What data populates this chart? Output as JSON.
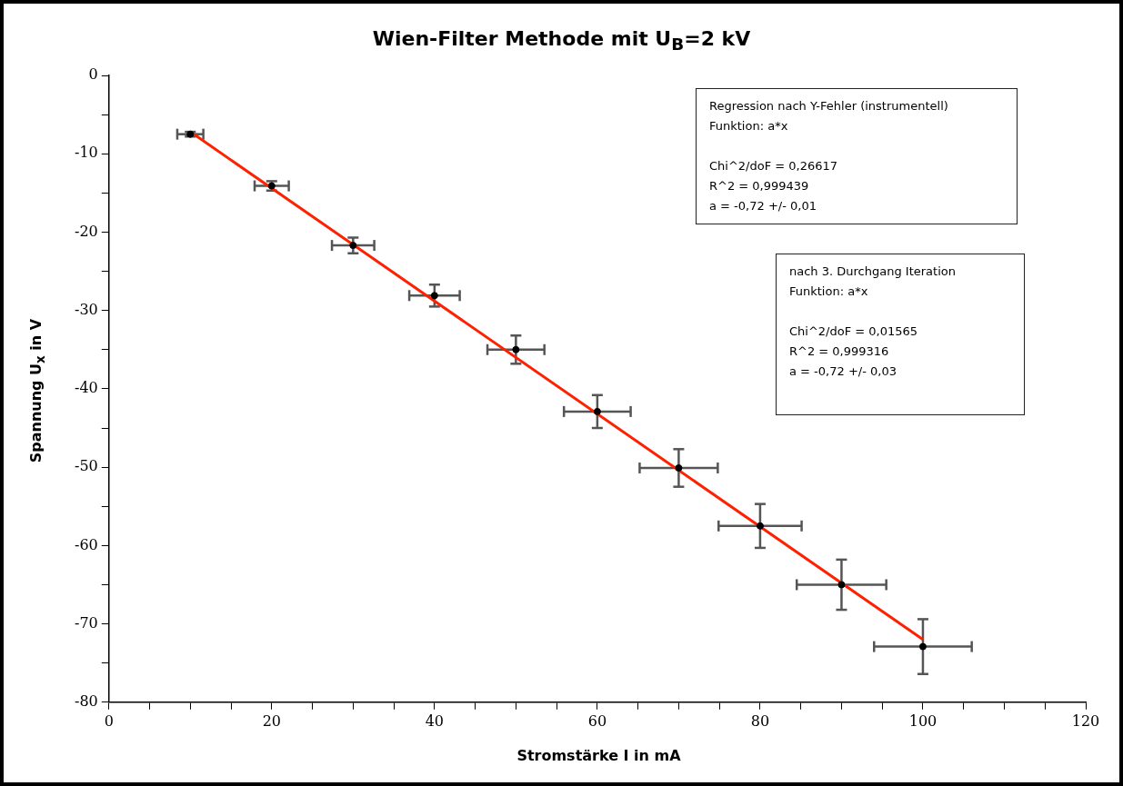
{
  "chart_data": {
    "type": "scatter",
    "title": "Wien-Filter Methode mit U$_{B}$=2 kV",
    "xlabel": "Stromstärke I in mA",
    "ylabel": "Spannung U$_{x}$ in V",
    "xlim": [
      0,
      120
    ],
    "ylim": [
      -80,
      0
    ],
    "xticks": [
      0,
      {
        "value": 5,
        "label": null
      },
      {
        "value": 10,
        "label": null
      },
      {
        "value": 15,
        "label": null
      },
      20,
      {
        "value": 25,
        "label": null
      },
      {
        "value": 30,
        "label": null
      },
      {
        "value": 35,
        "label": null
      },
      40,
      {
        "value": 45,
        "label": null
      },
      {
        "value": 50,
        "label": null
      },
      {
        "value": 55,
        "label": null
      },
      60,
      {
        "value": 65,
        "label": null
      },
      {
        "value": 70,
        "label": null
      },
      {
        "value": 75,
        "label": null
      },
      80,
      {
        "value": 85,
        "label": null
      },
      {
        "value": 90,
        "label": null
      },
      {
        "value": 95,
        "label": null
      },
      100,
      {
        "value": 105,
        "label": null
      },
      {
        "value": 110,
        "label": null
      },
      {
        "value": 115,
        "label": null
      },
      120
    ],
    "yticks": [
      -80,
      {
        "value": -75,
        "label": null
      },
      -70,
      {
        "value": -65,
        "label": null
      },
      -60,
      {
        "value": -55,
        "label": null
      },
      -50,
      {
        "value": -45,
        "label": null
      },
      -40,
      {
        "value": -35,
        "label": null
      },
      -30,
      {
        "value": -25,
        "label": null
      },
      -20,
      {
        "value": -15,
        "label": null
      },
      -10,
      {
        "value": -5,
        "label": null
      },
      0
    ],
    "grid": false,
    "legend": false,
    "marker": "circle",
    "series": [
      {
        "color": "#000000",
        "x": [
          10,
          20,
          30,
          40,
          50,
          60,
          70,
          80,
          90,
          100
        ],
        "values": [
          -7.5,
          -14.1,
          -21.7,
          -28.1,
          -35.0,
          -42.9,
          -50.1,
          -57.5,
          -65.0,
          -72.9
        ],
        "errors": [
          0.3,
          0.6,
          1.0,
          1.4,
          1.8,
          2.1,
          2.4,
          2.8,
          3.2,
          3.5
        ],
        "xerrors": [
          1.6,
          2.1,
          2.6,
          3.1,
          3.5,
          4.1,
          4.8,
          5.1,
          5.5,
          6.0
        ]
      },
      {
        "type": "line",
        "color": "#ff2000",
        "x": [
          10,
          100
        ],
        "values": [
          -7.2,
          -72
        ],
        "marker": "none",
        "line_style": "solid"
      }
    ],
    "annotations": [
      "Regression nach Y-Fehler (instrumentell)\nFunktion: a*x\n\nChi^2/doF = 0,26617\nR^2 = 0,999439\na = -0,72 +/- 0,01",
      "nach 3. Durchgang Iteration\nFunktion: a*x\n\nChi^2/doF = 0,01565\nR^2 = 0,999316\na = -0,72 +/- 0,03"
    ]
  }
}
